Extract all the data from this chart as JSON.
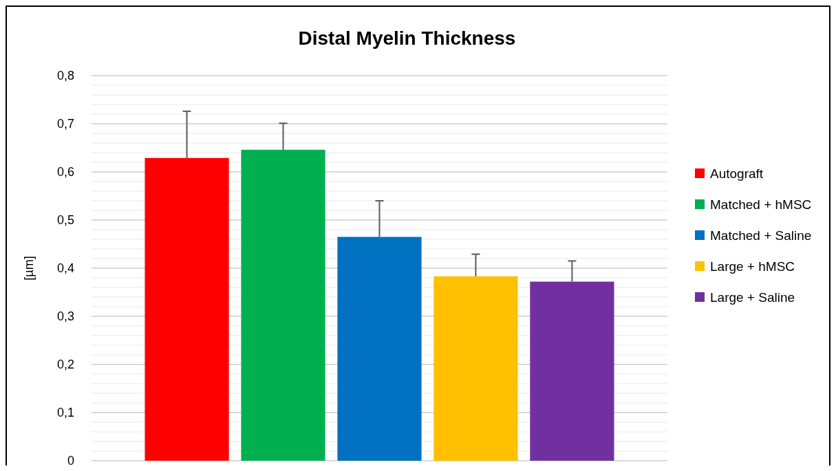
{
  "chart_data": {
    "type": "bar",
    "title": "Distal Myelin Thickness",
    "ylabel": "[µm]",
    "categories": [
      null
    ],
    "series": [
      {
        "name": "Autograft",
        "color": "#ff0000",
        "values": [
          0.629
        ],
        "errors": [
          [
            0.629,
            0.726
          ]
        ]
      },
      {
        "name": "Matched + hMSC",
        "color": "#00b050",
        "values": [
          0.646
        ],
        "errors": [
          [
            0.646,
            0.701
          ]
        ]
      },
      {
        "name": "Matched + Saline",
        "color": "#0070c0",
        "values": [
          0.465
        ],
        "errors": [
          [
            0.465,
            0.54
          ]
        ]
      },
      {
        "name": "Large + hMSC",
        "color": "#ffc000",
        "values": [
          0.383
        ],
        "errors": [
          [
            0.383,
            0.429
          ]
        ]
      },
      {
        "name": "Large + Saline",
        "color": "#7030a0",
        "values": [
          0.372
        ],
        "errors": [
          [
            0.372,
            0.415
          ]
        ]
      }
    ],
    "ylim": [
      0,
      0.8
    ],
    "yticks": [
      0,
      {
        "value": 0.02,
        "label": null
      },
      {
        "value": 0.04,
        "label": null
      },
      {
        "value": 0.06,
        "label": null
      },
      {
        "value": 0.08,
        "label": null
      },
      {
        "value": 0.1,
        "label": "0,1"
      },
      {
        "value": 0.12,
        "label": null
      },
      {
        "value": 0.14,
        "label": null
      },
      {
        "value": 0.16,
        "label": null
      },
      {
        "value": 0.18,
        "label": null
      },
      {
        "value": 0.2,
        "label": "0,2"
      },
      {
        "value": 0.22,
        "label": null
      },
      {
        "value": 0.24,
        "label": null
      },
      {
        "value": 0.26,
        "label": null
      },
      {
        "value": 0.28,
        "label": null
      },
      {
        "value": 0.3,
        "label": "0,3"
      },
      {
        "value": 0.32,
        "label": null
      },
      {
        "value": 0.34,
        "label": null
      },
      {
        "value": 0.36,
        "label": null
      },
      {
        "value": 0.38,
        "label": null
      },
      {
        "value": 0.4,
        "label": "0,4"
      },
      {
        "value": 0.42,
        "label": null
      },
      {
        "value": 0.44,
        "label": null
      },
      {
        "value": 0.46,
        "label": null
      },
      {
        "value": 0.48,
        "label": null
      },
      {
        "value": 0.5,
        "label": "0,5"
      },
      {
        "value": 0.52,
        "label": null
      },
      {
        "value": 0.54,
        "label": null
      },
      {
        "value": 0.56,
        "label": null
      },
      {
        "value": 0.58,
        "label": null
      },
      {
        "value": 0.6,
        "label": "0,6"
      },
      {
        "value": 0.62,
        "label": null
      },
      {
        "value": 0.64,
        "label": null
      },
      {
        "value": 0.66,
        "label": null
      },
      {
        "value": 0.68,
        "label": null
      },
      {
        "value": 0.7,
        "label": "0,7"
      },
      {
        "value": 0.72,
        "label": null
      },
      {
        "value": 0.74,
        "label": null
      },
      {
        "value": 0.76,
        "label": null
      },
      {
        "value": 0.78,
        "label": null
      },
      {
        "value": 0.8,
        "label": "0,8"
      }
    ],
    "grid": "y",
    "legend": "right"
  }
}
